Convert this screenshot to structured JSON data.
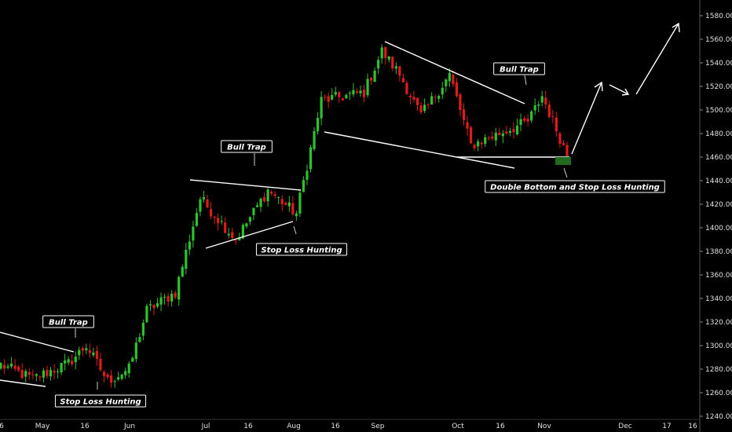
{
  "chart_data": {
    "type": "candlestick",
    "ylim": [
      1240,
      1590
    ],
    "y_ticks": [
      1240,
      1260,
      1280,
      1300,
      1320,
      1340,
      1360,
      1380,
      1400,
      1420,
      1440,
      1460,
      1480,
      1500,
      1520,
      1540,
      1560,
      1580
    ],
    "x_ticks": [
      "6",
      "May",
      "16",
      "Jun",
      "Jul",
      "16",
      "Aug",
      "16",
      "Sep",
      "Oct",
      "16",
      "Nov",
      "Dec",
      "17",
      "16"
    ],
    "legend": "none",
    "grid": false,
    "colors": {
      "up": "#2ec22e",
      "down": "#e01b1b",
      "lines": "#ffffff",
      "zone": "#1f6b1f"
    },
    "annotations": [
      "Bull Trap",
      "Stop Loss Hunting",
      "Bull Trap",
      "Stop Loss Hunting",
      "Bull Trap",
      "Double Bottom and Stop Loss Hunting"
    ],
    "segments": [
      {
        "name": "early-may",
        "from": 1285,
        "to": 1272,
        "n": 10
      },
      {
        "name": "may-range",
        "from": 1272,
        "to": 1285,
        "n": 10
      },
      {
        "name": "may-bull-trap",
        "from": 1285,
        "to": 1300,
        "n": 5
      },
      {
        "name": "may-drop",
        "from": 1300,
        "to": 1270,
        "n": 6
      },
      {
        "name": "may-base",
        "from": 1270,
        "to": 1280,
        "n": 6
      },
      {
        "name": "june-rally",
        "from": 1280,
        "to": 1330,
        "n": 5
      },
      {
        "name": "june-consolidate",
        "from": 1330,
        "to": 1345,
        "n": 8
      },
      {
        "name": "june-breakout",
        "from": 1345,
        "to": 1425,
        "n": 7
      },
      {
        "name": "july-triangle-down",
        "from": 1425,
        "to": 1390,
        "n": 10
      },
      {
        "name": "july-triangle-up",
        "from": 1390,
        "to": 1432,
        "n": 9
      },
      {
        "name": "july-pullback",
        "from": 1432,
        "to": 1412,
        "n": 8
      },
      {
        "name": "aug-breakout",
        "from": 1412,
        "to": 1508,
        "n": 7
      },
      {
        "name": "aug-range",
        "from": 1508,
        "to": 1515,
        "n": 12
      },
      {
        "name": "aug-rally",
        "from": 1515,
        "to": 1550,
        "n": 5
      },
      {
        "name": "sep-top",
        "from": 1550,
        "to": 1530,
        "n": 5
      },
      {
        "name": "sep-drop",
        "from": 1530,
        "to": 1495,
        "n": 6
      },
      {
        "name": "sep-bounce",
        "from": 1495,
        "to": 1530,
        "n": 8
      },
      {
        "name": "sep-fall",
        "from": 1530,
        "to": 1470,
        "n": 6
      },
      {
        "name": "oct-range",
        "from": 1470,
        "to": 1490,
        "n": 16
      },
      {
        "name": "oct-bull-trap",
        "from": 1490,
        "to": 1512,
        "n": 4
      },
      {
        "name": "nov-drop",
        "from": 1512,
        "to": 1462,
        "n": 7
      }
    ]
  }
}
